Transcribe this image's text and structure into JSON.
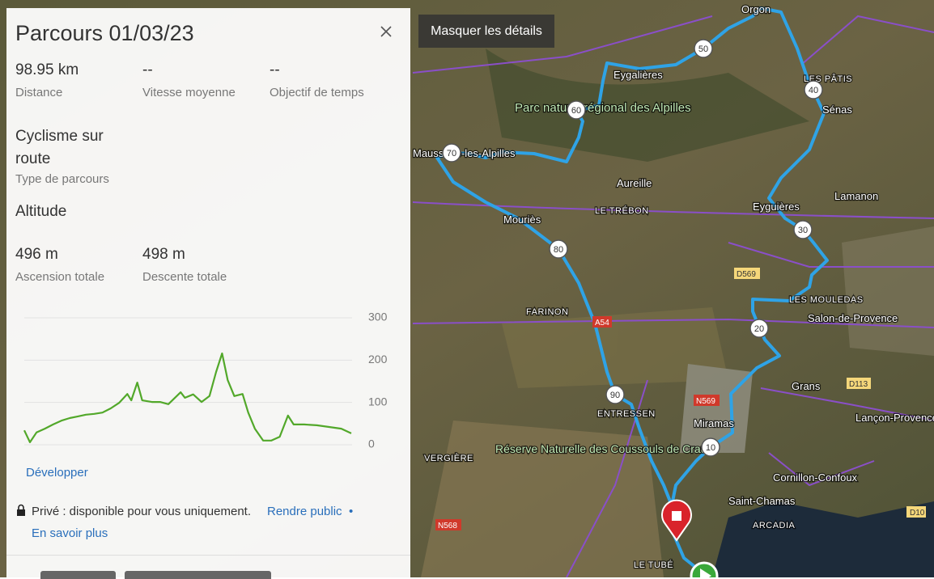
{
  "panel": {
    "title": "Parcours 01/03/23",
    "stats": [
      {
        "value": "98.95 km",
        "label": "Distance"
      },
      {
        "value": "--",
        "label": "Vitesse moyenne"
      },
      {
        "value": "--",
        "label": "Objectif de temps"
      }
    ],
    "route_type": {
      "value": "Cyclisme sur route",
      "label": "Type de parcours"
    },
    "altitude_heading": "Altitude",
    "elevation": [
      {
        "value": "496 m",
        "label": "Ascension totale"
      },
      {
        "value": "498 m",
        "label": "Descente totale"
      }
    ],
    "expand": "Développer",
    "privacy": "Privé : disponible pour vous uniquement.",
    "make_public": "Rendre public",
    "separator": "•",
    "learn_more": "En savoir plus"
  },
  "chart_data": {
    "type": "line",
    "x": [
      0,
      1.7,
      3.7,
      6.2,
      8.7,
      11.2,
      13.7,
      16.2,
      18.6,
      21.1,
      23.6,
      26.1,
      28.6,
      31.1,
      32.3,
      34.1,
      35.6,
      38.5,
      41.0,
      43.5,
      46.0,
      47.2,
      48.5,
      51.0,
      53.5,
      55.9,
      57.9,
      59.7,
      61.4,
      63.4,
      65.9,
      67.6,
      69.6,
      72.1,
      74.6,
      77.1,
      79.6,
      81.3,
      84.5,
      88.3,
      92.0,
      95.7,
      98.7
    ],
    "values": [
      34,
      6,
      29,
      38,
      48,
      57,
      63,
      67,
      71,
      73,
      76,
      86,
      99,
      120,
      105,
      147,
      105,
      101,
      101,
      96,
      115,
      124,
      111,
      119,
      101,
      115,
      172,
      216,
      153,
      115,
      120,
      76,
      38,
      10,
      10,
      19,
      69,
      48,
      48,
      46,
      42,
      38,
      27
    ],
    "color": "#52a82a",
    "xlim": [
      0,
      98.95
    ],
    "ylim": [
      0,
      300
    ],
    "yticks": [
      0,
      100,
      200,
      300
    ],
    "grid": true
  },
  "map": {
    "toggle_button": "Masquer les détails",
    "km_markers": [
      "10",
      "20",
      "30",
      "40",
      "50",
      "60",
      "70",
      "80",
      "90"
    ],
    "labels": [
      "Orgon",
      "Eygalières",
      "Parc naturel régional des Alpilles",
      "Maussane-les-Alpilles",
      "Aureille",
      "LE TRÉBON",
      "Mouriès",
      "Eyguières",
      "Lamanon",
      "LES PÂTIS",
      "Sénas",
      "D569",
      "FARINON",
      "A54",
      "LES MOULEDAS",
      "Salon-de-Provence",
      "Grans",
      "D113",
      "Lançon-Provence",
      "ENTRESSEN",
      "Miramas",
      "N569",
      "VERGIÈRE",
      "Réserve Naturelle des Coussouls de Crau",
      "Cornillon-Confoux",
      "Saint-Chamas",
      "ARCADIA",
      "LE TUBÉ",
      "N568",
      "D10"
    ]
  }
}
